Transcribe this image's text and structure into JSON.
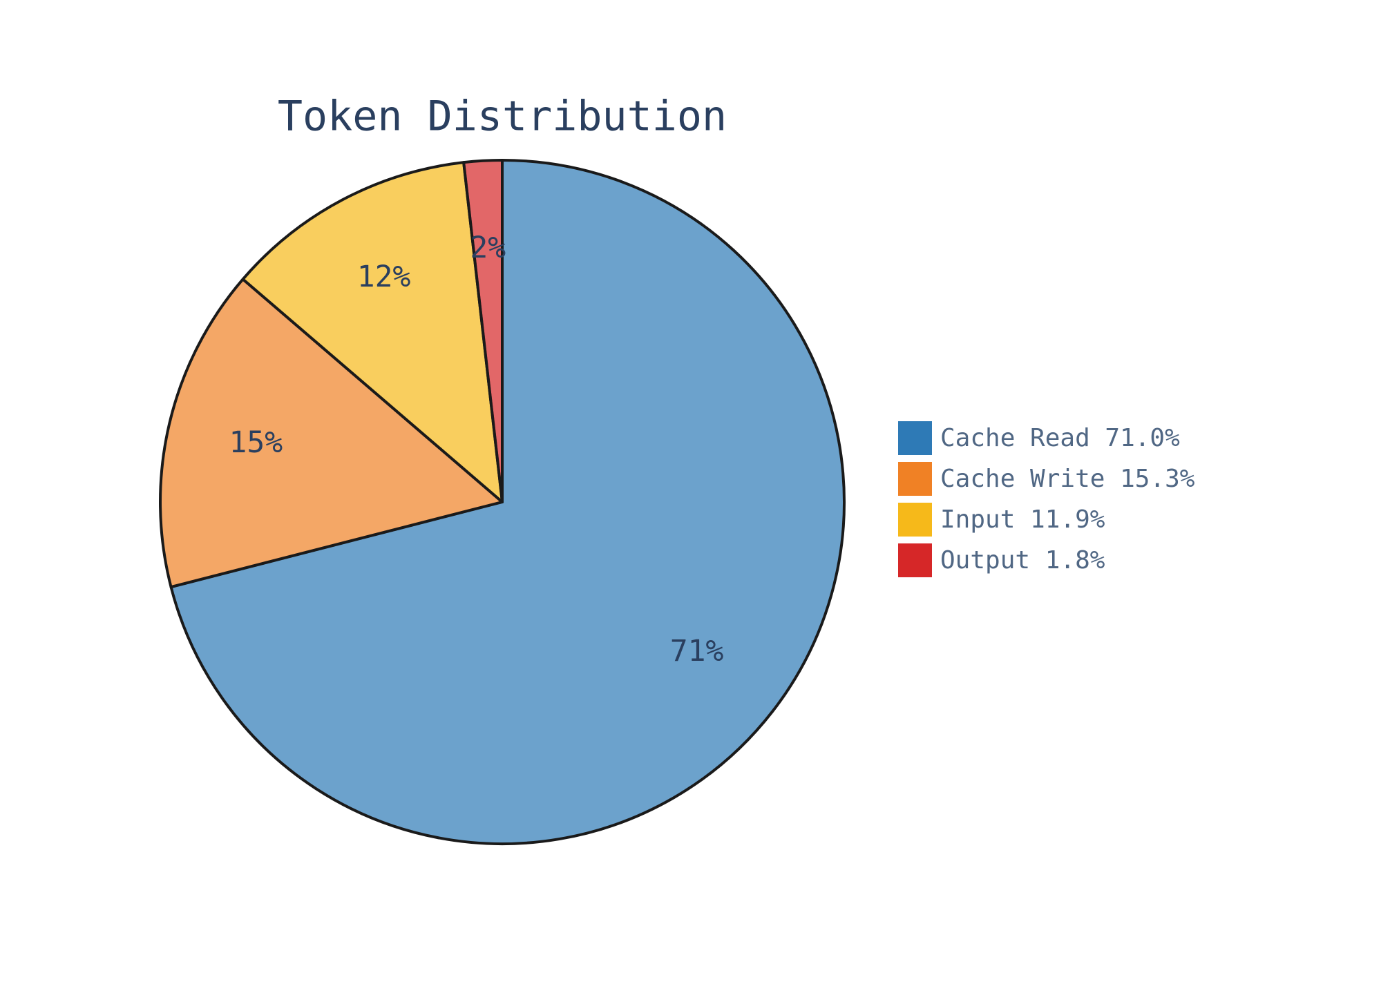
{
  "chart_data": {
    "type": "pie",
    "title": "Token Distribution",
    "categories": [
      "Cache Read 71.0%",
      "Cache Write 15.3%",
      "Input 11.9%",
      "Output 1.8%"
    ],
    "values": [
      71.0,
      15.3,
      11.9,
      1.8
    ],
    "value_labels": [
      "71%",
      "15%",
      "12%",
      "2%"
    ],
    "colors": [
      "#2e7ab6",
      "#f08125",
      "#f6b91a",
      "#d62728"
    ]
  }
}
